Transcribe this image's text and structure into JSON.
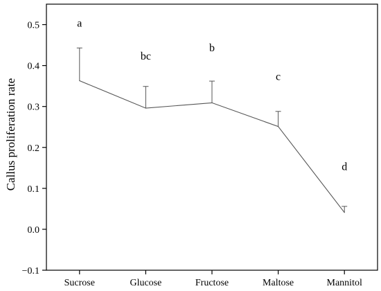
{
  "chart_data": {
    "type": "line",
    "title": "",
    "xlabel": "",
    "ylabel": "Callus proliferation rate",
    "ylim": [
      -0.1,
      0.55
    ],
    "yticks": [
      -0.1,
      0.0,
      0.1,
      0.2,
      0.3,
      0.4,
      0.5
    ],
    "ytick_labels": [
      "−0.1",
      "0.0",
      "0.1",
      "0.2",
      "0.3",
      "0.4",
      "0.5"
    ],
    "categories": [
      "Sucrose",
      "Glucose",
      "Fructose",
      "Maltose",
      "Mannitol"
    ],
    "values": [
      0.363,
      0.296,
      0.309,
      0.251,
      0.041
    ],
    "errors": [
      0.08,
      0.053,
      0.053,
      0.037,
      0.015
    ],
    "significance": [
      "a",
      "bc",
      "b",
      "c",
      "d"
    ],
    "significance_y": [
      0.495,
      0.415,
      0.435,
      0.365,
      0.145
    ],
    "grid": false,
    "legend": "none",
    "line_color": "#555555",
    "axis_color": "#000000"
  }
}
